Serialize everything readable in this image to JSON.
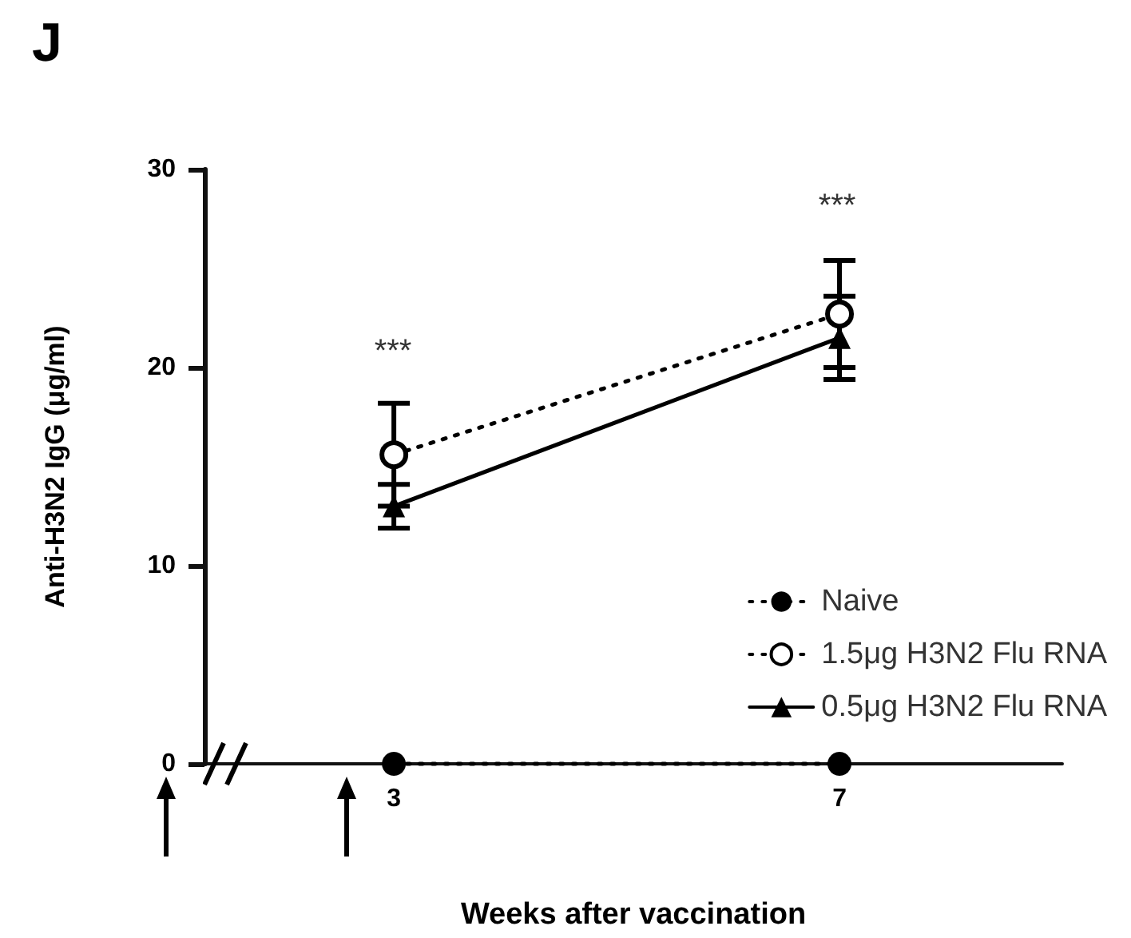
{
  "chart_data": {
    "type": "line",
    "title": "J",
    "xlabel": "Weeks after vaccination",
    "ylabel": "Anti-H3N2 IgG (μg/ml)",
    "x": [
      3,
      7
    ],
    "xlim": [
      1.3,
      9
    ],
    "xticks": [
      3,
      7
    ],
    "ylim": [
      0,
      30
    ],
    "yticks": [
      0,
      10,
      20,
      30
    ],
    "grid": false,
    "legend": "bottom right",
    "series": [
      {
        "name": "Naive",
        "color": "#000000",
        "values": [
          0,
          0
        ],
        "marker": "circle",
        "line_style": "dotted"
      },
      {
        "name": "1.5μg H3N2 Flu RNA",
        "color": "#000000",
        "values": [
          15.6,
          22.7
        ],
        "errors": [
          2.6,
          2.7
        ],
        "marker": "open circle",
        "line_style": "dotted"
      },
      {
        "name": "0.5μg H3N2 Flu RNA",
        "color": "#000000",
        "values": [
          13.0,
          21.5
        ],
        "errors": [
          1.1,
          2.1
        ],
        "marker": "triangle",
        "line_style": "solid"
      }
    ],
    "annotations": [
      "***",
      "***"
    ]
  }
}
